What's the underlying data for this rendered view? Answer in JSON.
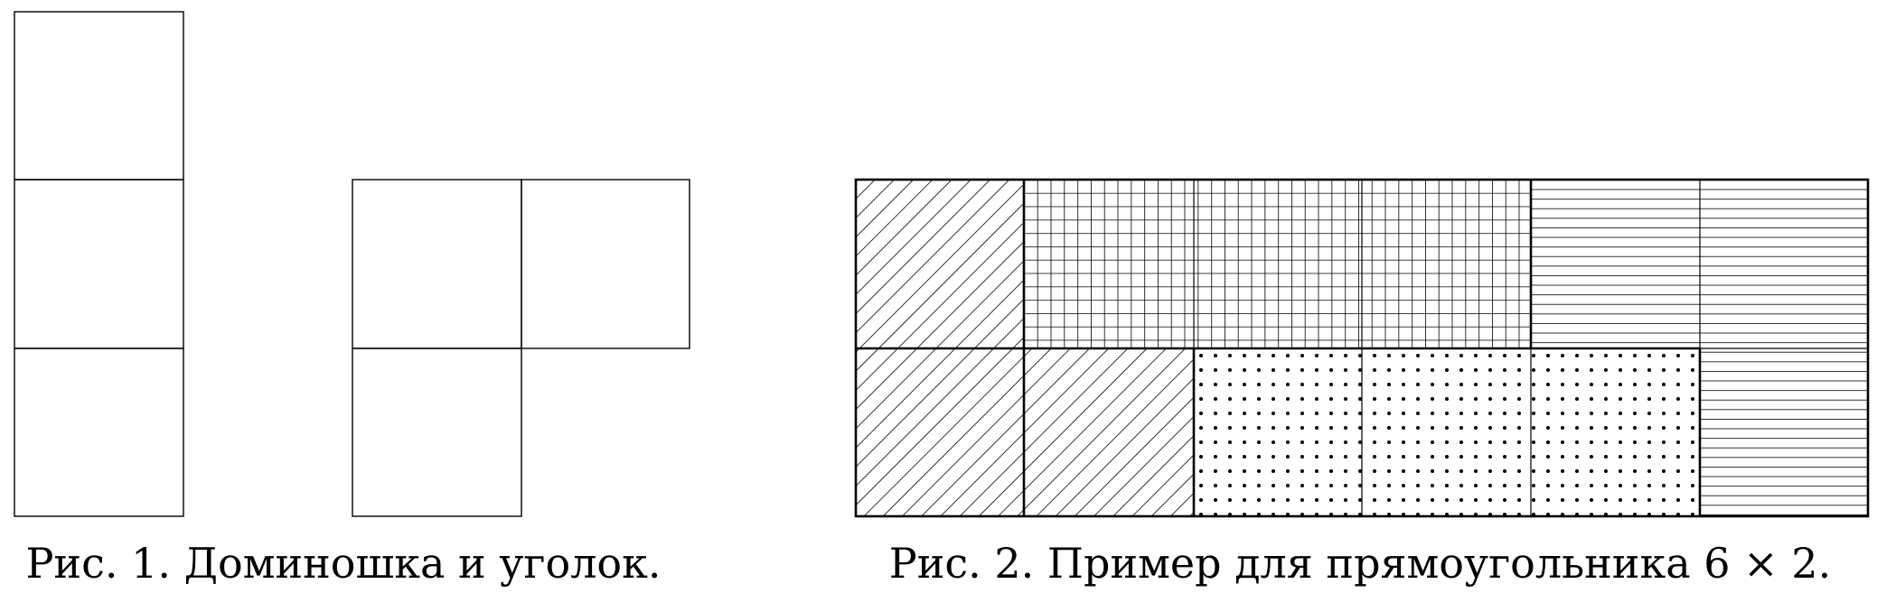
{
  "figure1": {
    "caption": "Рис. 1. Доминошка и уголок."
  },
  "figure2": {
    "caption": "Рис. 2. Пример для прямоугольника 6 × 2."
  }
}
